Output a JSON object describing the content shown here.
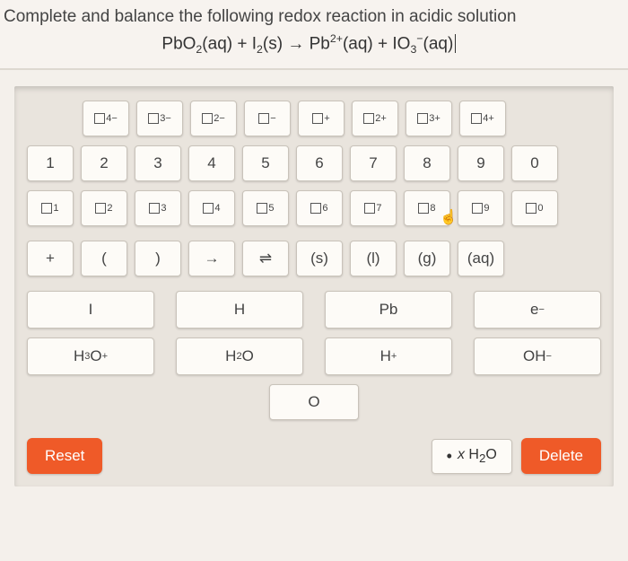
{
  "question": {
    "prompt": "Complete and balance the following redox reaction in acidic solution",
    "equation_html": "PbO<sub>2</sub>(aq) + I<sub>2</sub>(s) &rarr; Pb<sup>2+</sup>(aq) + IO<sub>3</sub><sup>&minus;</sup>(aq)"
  },
  "charge_row": [
    {
      "label_html": "4&minus;"
    },
    {
      "label_html": "3&minus;"
    },
    {
      "label_html": "2&minus;"
    },
    {
      "label_html": "&minus;"
    },
    {
      "label_html": "+"
    },
    {
      "label_html": "2+"
    },
    {
      "label_html": "3+"
    },
    {
      "label_html": "4+"
    }
  ],
  "number_row": [
    "1",
    "2",
    "3",
    "4",
    "5",
    "6",
    "7",
    "8",
    "9",
    "0"
  ],
  "subscript_row": [
    "1",
    "2",
    "3",
    "4",
    "5",
    "6",
    "7",
    "8",
    "9",
    "0"
  ],
  "symbol_row": [
    {
      "text": "+"
    },
    {
      "text": "("
    },
    {
      "text": ")"
    },
    {
      "text_html": "&rarr;"
    },
    {
      "text_html": "&#8652;"
    },
    {
      "text": "(s)"
    },
    {
      "text": "(l)"
    },
    {
      "text": "(g)"
    },
    {
      "text": "(aq)"
    }
  ],
  "chem_rows": [
    [
      {
        "label_html": "I"
      },
      {
        "label_html": "H"
      },
      {
        "label_html": "Pb"
      },
      {
        "label_html": "e<sup>&minus;</sup>"
      }
    ],
    [
      {
        "label_html": "H<sub>3</sub>O<sup>+</sup>"
      },
      {
        "label_html": "H<sub>2</sub>O"
      },
      {
        "label_html": "H<sup>+</sup>"
      },
      {
        "label_html": "OH<sup>&minus;</sup>"
      }
    ]
  ],
  "lone_key": {
    "label": "O"
  },
  "bottom": {
    "reset_label": "Reset",
    "delete_label": "Delete",
    "answer_display_html": "<i>x</i> H<sub>2</sub>O"
  },
  "colors": {
    "page_bg": "#f4f0eb",
    "panel_bg": "#e9e4dd",
    "key_bg": "#fdfbf7",
    "key_border": "#c9c3ba",
    "accent": "#ef5a28",
    "text": "#333333"
  }
}
